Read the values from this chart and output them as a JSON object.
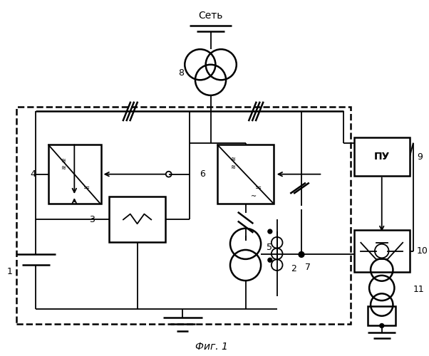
{
  "title": "Фиг. 1",
  "background": "#ffffff",
  "fig_width": 6.02,
  "fig_height": 5.0,
  "dpi": 100
}
